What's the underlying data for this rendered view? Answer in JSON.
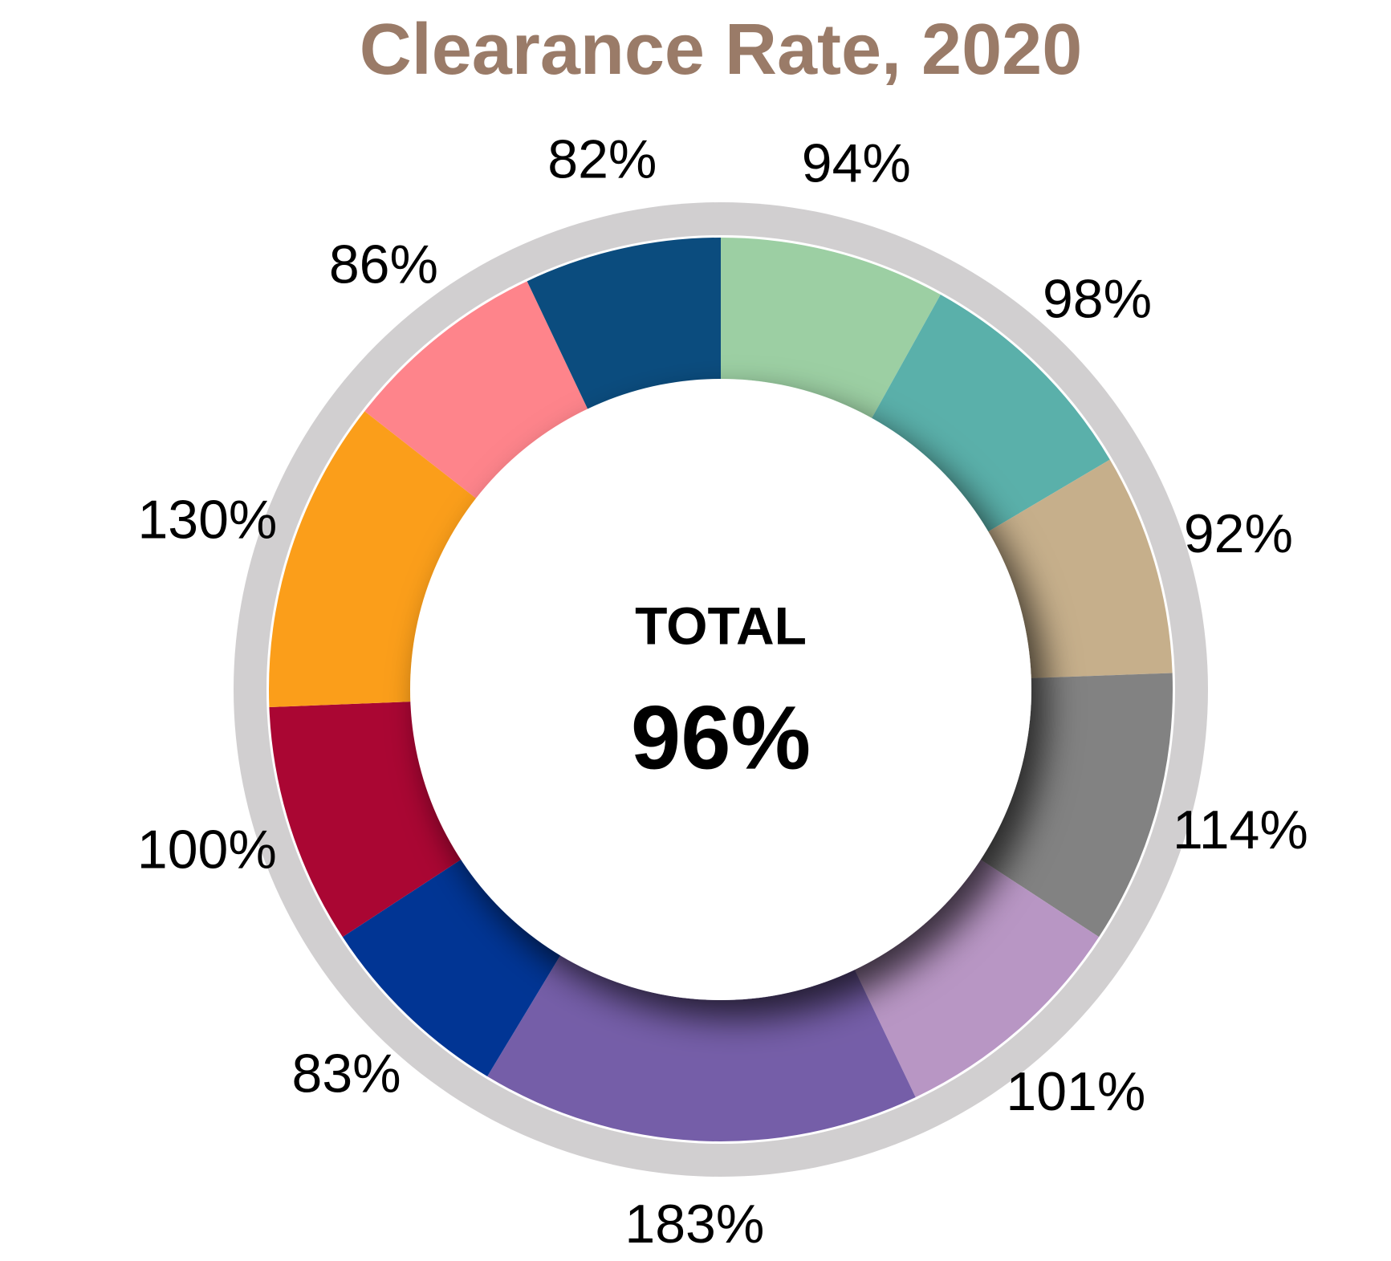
{
  "chart_data": {
    "type": "donut",
    "title": "Clearance Rate, 2020",
    "values": [
      94,
      98,
      92,
      114,
      101,
      183,
      83,
      100,
      130,
      86,
      82
    ],
    "value_labels": [
      "94%",
      "98%",
      "92%",
      "114%",
      "101%",
      "183%",
      "83%",
      "100%",
      "130%",
      "86%",
      "82%"
    ],
    "colors": [
      "#9ccfa3",
      "#5ab0aa",
      "#c6af8b",
      "#828282",
      "#b896c4",
      "#755ea8",
      "#013594",
      "#aa0633",
      "#fb9e1a",
      "#fe848b",
      "#0b4c7e"
    ],
    "center_label": "TOTAL",
    "center_value": 96,
    "center_value_label": "96%"
  }
}
